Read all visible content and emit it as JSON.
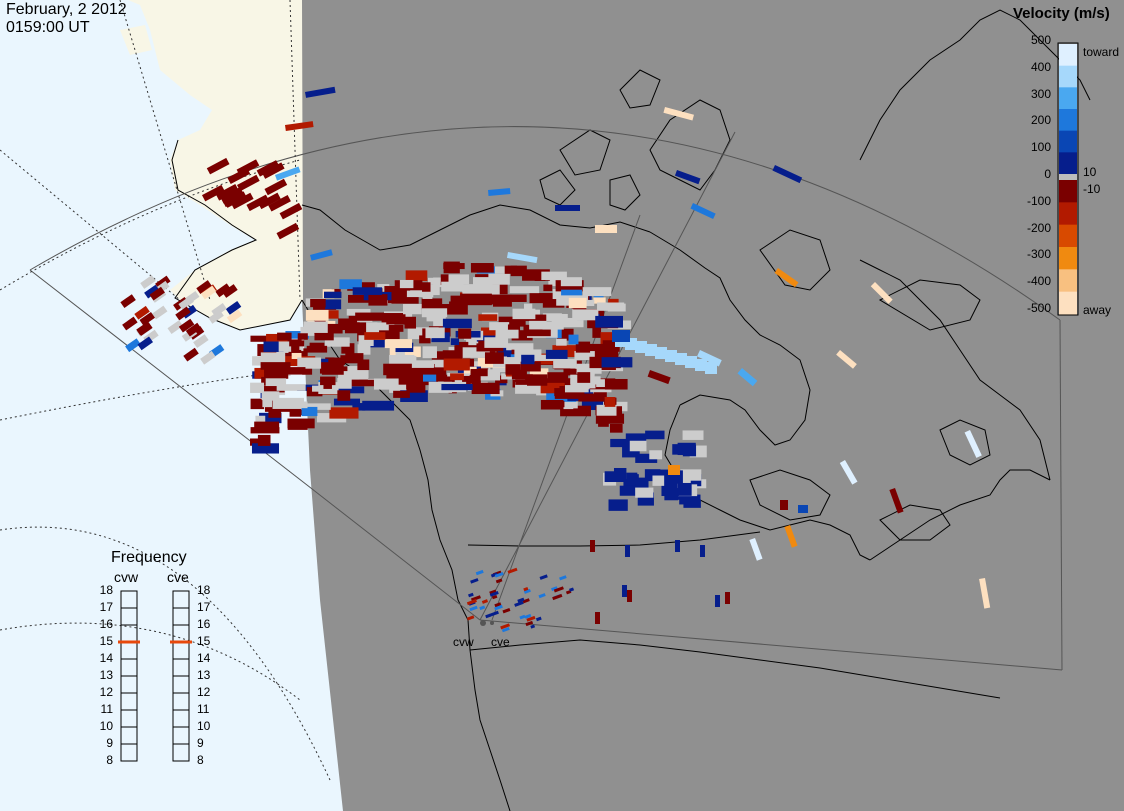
{
  "header": {
    "date": "February, 2 2012",
    "time": "0159:00 UT"
  },
  "frequency_panel": {
    "title": "Frequency",
    "radars": [
      "cvw",
      "cve"
    ],
    "levels": [
      "18",
      "17",
      "16",
      "15",
      "14",
      "13",
      "12",
      "11",
      "10",
      "9",
      "8"
    ],
    "selected": {
      "cvw": 15,
      "cve": 15
    }
  },
  "sites": {
    "west": "cvw",
    "east": "cve"
  },
  "velocity_scale": {
    "title": "Velocity (m/s)",
    "ticks": [
      "500",
      "400",
      "300",
      "200",
      "100",
      "0",
      "-100",
      "-200",
      "-300",
      "-400",
      "-500"
    ],
    "extra_ticks": [
      "10",
      "-10"
    ],
    "toward_label": "toward",
    "away_label": "away",
    "toward_colors": [
      "#dff0ff",
      "#a6d8fb",
      "#4aa8f0",
      "#1e78dc",
      "#0a46b4",
      "#061e8c"
    ],
    "away_colors": [
      "#7a0000",
      "#b21a00",
      "#d84a00",
      "#f08a10",
      "#f8c080",
      "#fde0c0"
    ],
    "zero_color": "#bdbdbd"
  },
  "colors": {
    "night": "#909090",
    "land_day": "#f8f6e6",
    "ocean_day": "#eaf6fe",
    "ground_scatter": "#cccccc",
    "selected_freq": "#e8480c"
  }
}
